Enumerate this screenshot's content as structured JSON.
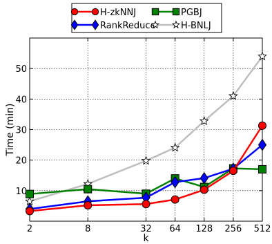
{
  "chart_data": {
    "type": "line",
    "xlabel": "k",
    "ylabel": "Time (min)",
    "x_scale": "log2",
    "x": [
      2,
      8,
      32,
      64,
      128,
      256,
      512
    ],
    "xtick_labels": [
      "2",
      "8",
      "32",
      "64",
      "128",
      "256",
      "512"
    ],
    "ylim": [
      0,
      60
    ],
    "yticks": [
      10,
      20,
      30,
      40,
      50
    ],
    "grid": true,
    "legend_position": "top-center",
    "series": [
      {
        "name": "H-zkNNJ",
        "color": "#ff0000",
        "marker": "circle",
        "line_color": "#ff0000",
        "values": [
          3.3,
          5.2,
          5.6,
          7.1,
          10.3,
          16.5,
          31.3
        ]
      },
      {
        "name": "PGBJ",
        "color": "#008000",
        "marker": "square",
        "line_color": "#008000",
        "values": [
          8.9,
          10.5,
          9.0,
          14.0,
          11.2,
          17.3,
          17.0
        ]
      },
      {
        "name": "RankReduce",
        "color": "#0000ff",
        "marker": "diamond",
        "line_color": "#0000ff",
        "values": [
          4.0,
          6.5,
          7.7,
          12.8,
          14.1,
          17.2,
          25.0
        ]
      },
      {
        "name": "H-BNLJ",
        "color": "#bfbfbf",
        "marker": "star",
        "line_color": "#bfbfbf",
        "values": [
          6.5,
          12.2,
          19.8,
          24.1,
          32.8,
          41.0,
          54.0
        ]
      }
    ]
  }
}
